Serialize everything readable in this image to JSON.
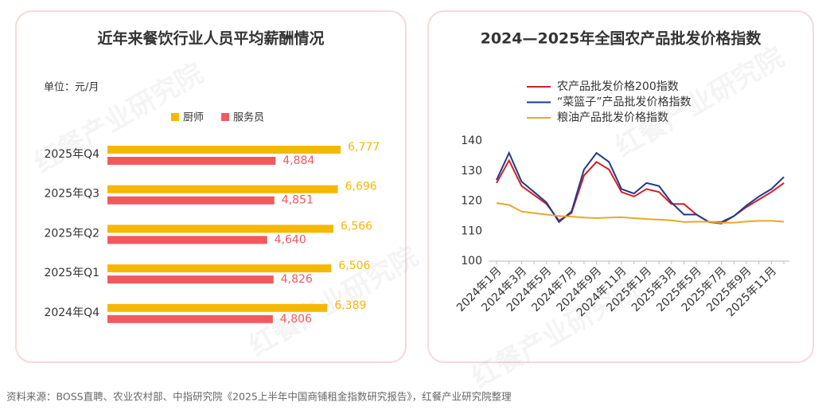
{
  "chart_data": [
    {
      "type": "bar",
      "orientation": "horizontal",
      "title": "近年来餐饮行业人员平均薪酬情况",
      "subtitle": "单位：元/月",
      "categories": [
        "2025年Q4",
        "2025年Q3",
        "2025年Q2",
        "2025年Q1",
        "2024年Q4"
      ],
      "series": [
        {
          "name": "厨师",
          "color": "#f5b800",
          "values": [
            6777,
            6696,
            6566,
            6506,
            6389
          ],
          "value_labels": [
            "6,777",
            "6,696",
            "6,566",
            "6,506",
            "6,389"
          ]
        },
        {
          "name": "服务员",
          "color": "#f05a5e",
          "values": [
            4884,
            4851,
            4640,
            4826,
            4806
          ],
          "value_labels": [
            "4,884",
            "4,851",
            "4,640",
            "4,826",
            "4,806"
          ]
        }
      ],
      "xlim": [
        0,
        8000
      ],
      "legend": "top"
    },
    {
      "type": "line",
      "title": "2024—2025年全国农产品批发价格指数",
      "categories": [
        "2024年1月",
        null,
        "2024年3月",
        null,
        "2024年5月",
        null,
        "2024年7月",
        null,
        "2024年9月",
        null,
        "2024年11月",
        null,
        "2025年1月",
        null,
        "2025年3月",
        null,
        "2025年5月",
        null,
        "2025年7月",
        null,
        "2025年9月",
        null,
        "2025年11月",
        null
      ],
      "series": [
        {
          "name": "农产品批发价格200指数",
          "color": "#d51f26",
          "values": [
            126,
            133.5,
            125,
            122,
            119,
            113.5,
            116,
            128.5,
            133,
            130.5,
            123,
            121.5,
            124,
            123,
            119,
            119,
            115.5,
            113,
            112.5,
            115,
            118,
            120.5,
            123,
            126
          ]
        },
        {
          "name": "“菜篮子”产品批发价格指数",
          "color": "#1f3a8a",
          "values": [
            127,
            136,
            126.5,
            123,
            119.5,
            113,
            116.5,
            130.5,
            136,
            133,
            124,
            122.5,
            126,
            125,
            119.5,
            115.5,
            115.5,
            113,
            113,
            115,
            118.5,
            121.5,
            124,
            128
          ]
        },
        {
          "name": "粮油产品批发价格指数",
          "color": "#e8a82e",
          "values": [
            119.3,
            118.7,
            116.5,
            116,
            115.5,
            115,
            114.8,
            114.5,
            114.3,
            114.5,
            114.6,
            114.3,
            114,
            113.8,
            113.6,
            113,
            113.1,
            113.1,
            112.8,
            112.8,
            113.2,
            113.4,
            113.4,
            113.1
          ]
        }
      ],
      "ylim": [
        100,
        140
      ],
      "yticks": [
        100,
        110,
        120,
        130,
        140
      ],
      "grid": false,
      "legend": "top-left"
    }
  ],
  "watermark": "红餐产业研究院",
  "source": "资料来源：BOSS直聘、农业农村部、中指研究院《2025上半年中国商铺租金指数研究报告》，红餐产业研究院整理"
}
